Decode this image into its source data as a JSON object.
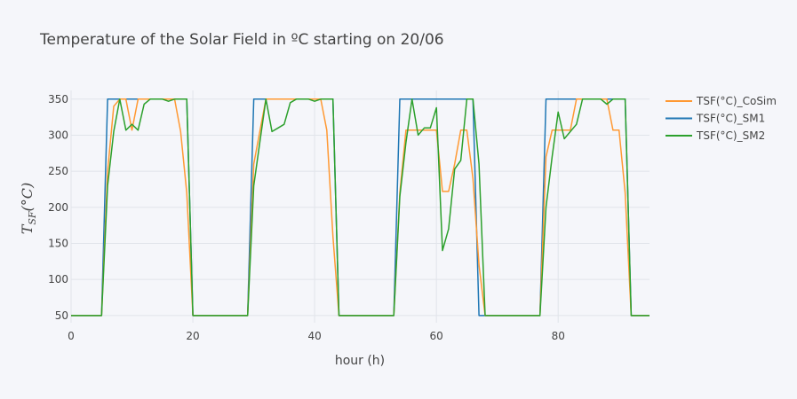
{
  "chart_data": {
    "type": "line",
    "title": "Temperature of the Solar Field in ºC starting on 20/06",
    "xlabel": "hour (h)",
    "ylabel": {
      "base": "T",
      "sub": "SF",
      "unit": "(°C)"
    },
    "xlim": [
      0,
      95
    ],
    "ylim": [
      40,
      362
    ],
    "xticks": [
      0,
      20,
      40,
      60,
      80
    ],
    "yticks": [
      50,
      100,
      150,
      200,
      250,
      300,
      350
    ],
    "grid": true,
    "legend_position": "top-right",
    "series": [
      {
        "name": "TSF(°C)_CoSim",
        "color": "#ff9933",
        "points": [
          [
            0,
            50
          ],
          [
            5,
            50
          ],
          [
            6,
            250
          ],
          [
            7,
            340
          ],
          [
            8,
            350
          ],
          [
            9,
            350
          ],
          [
            10,
            307
          ],
          [
            11,
            350
          ],
          [
            12,
            350
          ],
          [
            13,
            350
          ],
          [
            14,
            350
          ],
          [
            15,
            350
          ],
          [
            16,
            350
          ],
          [
            17,
            350
          ],
          [
            18,
            305
          ],
          [
            19,
            220
          ],
          [
            20,
            50
          ],
          [
            29,
            50
          ],
          [
            30,
            260
          ],
          [
            31,
            305
          ],
          [
            32,
            350
          ],
          [
            33,
            350
          ],
          [
            34,
            350
          ],
          [
            35,
            350
          ],
          [
            36,
            350
          ],
          [
            37,
            350
          ],
          [
            38,
            350
          ],
          [
            39,
            350
          ],
          [
            40,
            350
          ],
          [
            41,
            350
          ],
          [
            42,
            307
          ],
          [
            43,
            160
          ],
          [
            44,
            50
          ],
          [
            53,
            50
          ],
          [
            54,
            220
          ],
          [
            55,
            307
          ],
          [
            56,
            307
          ],
          [
            57,
            307
          ],
          [
            58,
            307
          ],
          [
            59,
            307
          ],
          [
            60,
            307
          ],
          [
            61,
            222
          ],
          [
            62,
            222
          ],
          [
            63,
            260
          ],
          [
            64,
            307
          ],
          [
            65,
            307
          ],
          [
            66,
            240
          ],
          [
            67,
            120
          ],
          [
            68,
            50
          ],
          [
            77,
            50
          ],
          [
            78,
            270
          ],
          [
            79,
            307
          ],
          [
            80,
            307
          ],
          [
            81,
            307
          ],
          [
            82,
            307
          ],
          [
            83,
            350
          ],
          [
            84,
            350
          ],
          [
            85,
            350
          ],
          [
            86,
            350
          ],
          [
            87,
            350
          ],
          [
            88,
            350
          ],
          [
            89,
            307
          ],
          [
            90,
            307
          ],
          [
            91,
            220
          ],
          [
            92,
            50
          ],
          [
            95,
            50
          ]
        ]
      },
      {
        "name": "TSF(°C)_SM1",
        "color": "#1f77b4",
        "points": [
          [
            0,
            50
          ],
          [
            5,
            50
          ],
          [
            6,
            350
          ],
          [
            19,
            350
          ],
          [
            20,
            50
          ],
          [
            29,
            50
          ],
          [
            30,
            350
          ],
          [
            43,
            350
          ],
          [
            44,
            50
          ],
          [
            53,
            50
          ],
          [
            54,
            350
          ],
          [
            66,
            350
          ],
          [
            67,
            50
          ],
          [
            77,
            50
          ],
          [
            78,
            350
          ],
          [
            91,
            350
          ],
          [
            92,
            50
          ],
          [
            95,
            50
          ]
        ]
      },
      {
        "name": "TSF(°C)_SM2",
        "color": "#2ca02c",
        "points": [
          [
            0,
            50
          ],
          [
            5,
            50
          ],
          [
            6,
            230
          ],
          [
            7,
            305
          ],
          [
            8,
            350
          ],
          [
            9,
            307
          ],
          [
            10,
            315
          ],
          [
            11,
            307
          ],
          [
            12,
            343
          ],
          [
            13,
            350
          ],
          [
            14,
            350
          ],
          [
            15,
            350
          ],
          [
            16,
            347
          ],
          [
            17,
            350
          ],
          [
            18,
            350
          ],
          [
            19,
            350
          ],
          [
            20,
            50
          ],
          [
            29,
            50
          ],
          [
            30,
            230
          ],
          [
            31,
            290
          ],
          [
            32,
            350
          ],
          [
            33,
            305
          ],
          [
            34,
            310
          ],
          [
            35,
            315
          ],
          [
            36,
            345
          ],
          [
            37,
            350
          ],
          [
            38,
            350
          ],
          [
            39,
            350
          ],
          [
            40,
            347
          ],
          [
            41,
            350
          ],
          [
            42,
            350
          ],
          [
            43,
            350
          ],
          [
            44,
            50
          ],
          [
            53,
            50
          ],
          [
            54,
            215
          ],
          [
            55,
            290
          ],
          [
            56,
            350
          ],
          [
            57,
            300
          ],
          [
            58,
            310
          ],
          [
            59,
            310
          ],
          [
            60,
            338
          ],
          [
            61,
            140
          ],
          [
            62,
            170
          ],
          [
            63,
            253
          ],
          [
            64,
            265
          ],
          [
            65,
            350
          ],
          [
            66,
            350
          ],
          [
            67,
            260
          ],
          [
            68,
            50
          ],
          [
            77,
            50
          ],
          [
            78,
            200
          ],
          [
            79,
            270
          ],
          [
            80,
            332
          ],
          [
            81,
            295
          ],
          [
            82,
            305
          ],
          [
            83,
            315
          ],
          [
            84,
            350
          ],
          [
            85,
            350
          ],
          [
            86,
            350
          ],
          [
            87,
            350
          ],
          [
            88,
            343
          ],
          [
            89,
            350
          ],
          [
            90,
            350
          ],
          [
            91,
            350
          ],
          [
            92,
            50
          ],
          [
            95,
            50
          ]
        ]
      }
    ]
  }
}
